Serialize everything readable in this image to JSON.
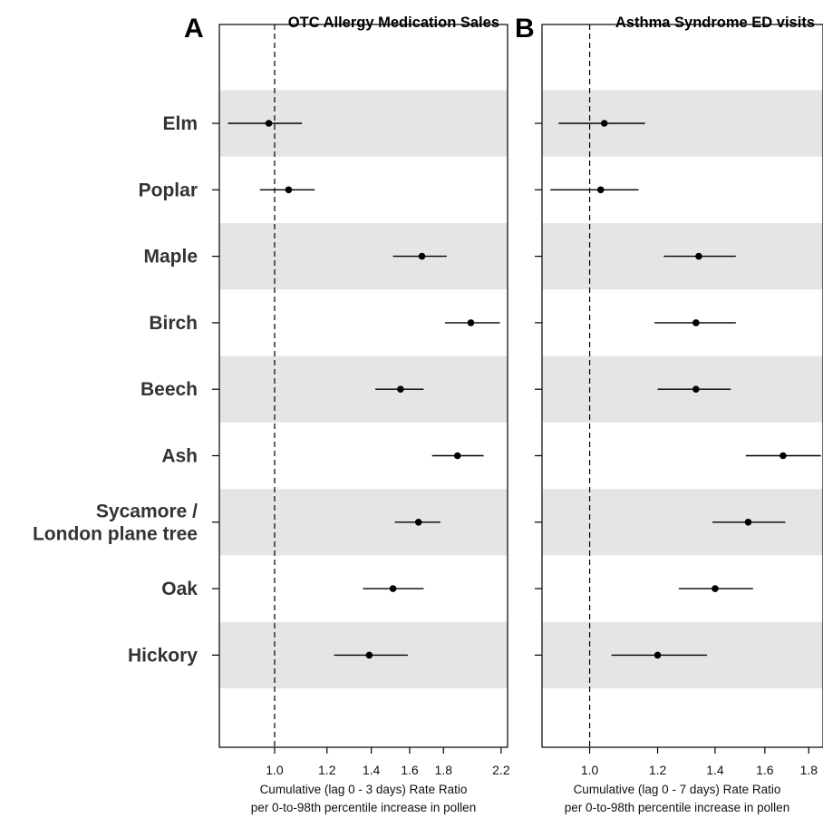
{
  "chart_data": [
    {
      "type": "forest",
      "panel": "A",
      "title": "OTC Allergy Medication Sales",
      "xlabel_lines": [
        "Cumulative (lag 0 - 3 days) Rate Ratio",
        "per 0-to-98th percentile increase in pollen"
      ],
      "log_scale": true,
      "xlim": [
        0.825,
        2.25
      ],
      "xticks": [
        1.0,
        1.2,
        1.4,
        1.6,
        1.8,
        2.2
      ],
      "xtick_labels": [
        "1.0",
        "1.2",
        "1.4",
        "1.6",
        "1.8",
        "2.2"
      ],
      "reference_line": 1.0,
      "categories": [
        "Elm",
        "Poplar",
        "Maple",
        "Birch",
        "Beech",
        "Ash",
        "Sycamore /\nLondon plane tree",
        "Oak",
        "Hickory"
      ],
      "estimates": [
        0.98,
        1.05,
        1.67,
        1.98,
        1.55,
        1.89,
        1.65,
        1.51,
        1.39
      ],
      "ci_lower": [
        0.85,
        0.95,
        1.51,
        1.81,
        1.42,
        1.73,
        1.52,
        1.36,
        1.23
      ],
      "ci_upper": [
        1.1,
        1.15,
        1.82,
        2.19,
        1.68,
        2.07,
        1.78,
        1.68,
        1.59
      ]
    },
    {
      "type": "forest",
      "panel": "B",
      "title": "Asthma Syndrome ED visits",
      "xlabel_lines": [
        "Cumulative (lag 0 - 7 days) Rate Ratio",
        "per 0-to-98th percentile increase in pollen"
      ],
      "log_scale": true,
      "xlim": [
        0.88,
        1.87
      ],
      "xticks": [
        1.0,
        1.2,
        1.4,
        1.6,
        1.8
      ],
      "xtick_labels": [
        "1.0",
        "1.2",
        "1.4",
        "1.6",
        "1.8"
      ],
      "reference_line": 1.0,
      "categories": [
        "Elm",
        "Poplar",
        "Maple",
        "Birch",
        "Beech",
        "Ash",
        "Sycamore /\nLondon plane tree",
        "Oak",
        "Hickory"
      ],
      "estimates": [
        1.04,
        1.03,
        1.34,
        1.33,
        1.33,
        1.68,
        1.53,
        1.4,
        1.2
      ],
      "ci_lower": [
        0.92,
        0.9,
        1.22,
        1.19,
        1.2,
        1.52,
        1.39,
        1.27,
        1.06
      ],
      "ci_upper": [
        1.16,
        1.14,
        1.48,
        1.48,
        1.46,
        1.86,
        1.69,
        1.55,
        1.37
      ]
    }
  ],
  "colors": {
    "band": "#e5e5e5",
    "point": "#000000",
    "line": "#000000",
    "label": "#333333"
  },
  "band_rows": [
    "Elm",
    "Maple",
    "Beech",
    "Sycamore /\nLondon plane tree",
    "Hickory"
  ]
}
